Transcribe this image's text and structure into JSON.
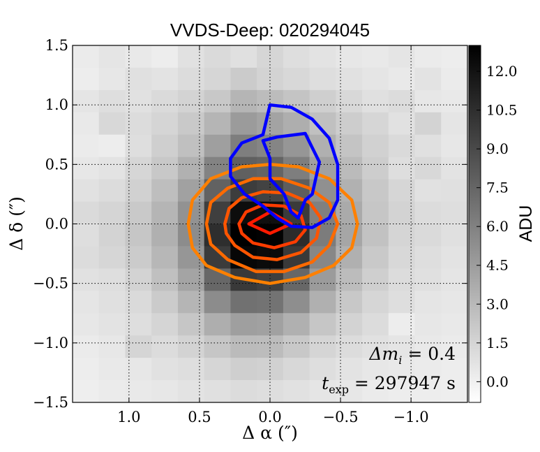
{
  "chart_data": {
    "type": "heatmap",
    "title": "VVDS-Deep: 020294045",
    "xlabel": "Δ α  (″)",
    "ylabel": "Δ δ  (″)",
    "xlim": [
      1.4,
      -1.4
    ],
    "ylim": [
      -1.5,
      1.5
    ],
    "x_ticks": [
      {
        "value": 1.0,
        "label": "1.0"
      },
      {
        "value": 0.5,
        "label": "0.5"
      },
      {
        "value": 0.0,
        "label": "0.0"
      },
      {
        "value": -0.5,
        "label": "−0.5"
      },
      {
        "value": -1.0,
        "label": "−1.0"
      }
    ],
    "y_ticks": [
      {
        "value": -1.5,
        "label": "−1.5"
      },
      {
        "value": -1.0,
        "label": "−1.0"
      },
      {
        "value": -0.5,
        "label": "−0.5"
      },
      {
        "value": 0.0,
        "label": "0.0"
      },
      {
        "value": 0.5,
        "label": "0.5"
      },
      {
        "value": 1.0,
        "label": "1.0"
      },
      {
        "value": 1.5,
        "label": "1.5"
      }
    ],
    "grid": "dotted",
    "colorbar": {
      "label": "ADU",
      "min": -0.8,
      "max": 13.0,
      "ticks": [
        {
          "value": 0.0,
          "label": "0.0"
        },
        {
          "value": 1.5,
          "label": "1.5"
        },
        {
          "value": 3.0,
          "label": "3.0"
        },
        {
          "value": 4.5,
          "label": "4.5"
        },
        {
          "value": 6.0,
          "label": "6.0"
        },
        {
          "value": 7.5,
          "label": "7.5"
        },
        {
          "value": 9.0,
          "label": "9.0"
        },
        {
          "value": 10.5,
          "label": "10.5"
        },
        {
          "value": 12.0,
          "label": "12.0"
        }
      ]
    },
    "pixel_grid": {
      "nx": 15,
      "ny": 16,
      "x_start": 1.4,
      "x_end": -1.4,
      "y_start": 1.5,
      "y_end": -1.5
    },
    "values": [
      [
        0.3,
        0.6,
        0.4,
        0.2,
        0.8,
        1.2,
        0.9,
        1.4,
        1.0,
        0.7,
        0.5,
        0.4,
        0.6,
        0.3,
        0.2
      ],
      [
        0.2,
        0.5,
        0.9,
        0.7,
        1.1,
        1.4,
        2.0,
        1.6,
        1.3,
        1.0,
        0.8,
        0.6,
        0.4,
        0.7,
        0.3
      ],
      [
        0.6,
        1.0,
        0.8,
        1.2,
        1.6,
        2.2,
        3.2,
        2.8,
        2.4,
        1.8,
        1.3,
        0.9,
        1.1,
        0.5,
        0.4
      ],
      [
        0.4,
        1.3,
        1.1,
        1.5,
        2.1,
        3.2,
        4.6,
        4.2,
        3.6,
        2.6,
        1.9,
        1.4,
        0.8,
        1.6,
        0.6
      ],
      [
        0.3,
        0.2,
        1.0,
        1.8,
        2.6,
        4.4,
        6.2,
        5.8,
        4.9,
        3.5,
        2.4,
        1.7,
        1.2,
        0.9,
        0.5
      ],
      [
        0.5,
        0.7,
        1.4,
        2.2,
        3.4,
        5.9,
        7.8,
        7.6,
        6.2,
        4.3,
        2.9,
        1.9,
        1.0,
        1.3,
        0.7
      ],
      [
        0.8,
        1.1,
        1.7,
        2.7,
        4.3,
        7.7,
        9.7,
        9.4,
        7.9,
        5.2,
        3.4,
        2.2,
        1.4,
        0.8,
        0.9
      ],
      [
        1.2,
        1.5,
        2.1,
        3.2,
        5.1,
        9.6,
        12.3,
        12.2,
        9.8,
        6.1,
        3.8,
        2.3,
        1.6,
        1.1,
        1.0
      ],
      [
        1.0,
        1.6,
        2.3,
        3.5,
        5.4,
        10.5,
        13.0,
        12.9,
        10.6,
        6.3,
        4.0,
        2.5,
        1.5,
        1.2,
        0.9
      ],
      [
        1.1,
        1.4,
        2.0,
        3.1,
        4.9,
        9.8,
        12.6,
        12.4,
        9.9,
        5.7,
        3.5,
        2.1,
        1.3,
        1.0,
        0.7
      ],
      [
        0.8,
        1.0,
        1.6,
        2.6,
        4.1,
        7.4,
        9.9,
        9.6,
        7.4,
        4.6,
        2.8,
        1.8,
        1.1,
        0.9,
        0.6
      ],
      [
        0.6,
        0.9,
        1.2,
        2.0,
        3.2,
        5.4,
        6.9,
        6.8,
        5.3,
        3.5,
        2.2,
        1.4,
        1.0,
        0.6,
        0.5
      ],
      [
        0.5,
        0.7,
        1.0,
        1.5,
        2.3,
        3.6,
        4.4,
        4.3,
        3.5,
        2.3,
        1.6,
        1.1,
        0.2,
        0.5,
        0.4
      ],
      [
        0.3,
        0.5,
        1.5,
        1.1,
        1.6,
        2.3,
        2.9,
        2.8,
        2.2,
        1.5,
        1.1,
        0.8,
        0.6,
        0.4,
        0.3
      ],
      [
        0.2,
        0.4,
        0.5,
        0.8,
        1.0,
        1.4,
        1.8,
        1.7,
        1.3,
        1.0,
        0.7,
        0.5,
        0.4,
        0.3,
        0.2
      ],
      [
        0.1,
        0.3,
        0.4,
        0.5,
        0.7,
        0.9,
        1.1,
        1.0,
        0.8,
        0.6,
        0.5,
        0.3,
        0.2,
        0.2,
        0.1
      ]
    ],
    "contours": [
      {
        "name": "orange-outer",
        "color": "#ff8000",
        "points": [
          [
            0.58,
            0.0
          ],
          [
            0.55,
            0.2
          ],
          [
            0.42,
            0.38
          ],
          [
            0.2,
            0.48
          ],
          [
            0.0,
            0.5
          ],
          [
            -0.2,
            0.48
          ],
          [
            -0.42,
            0.38
          ],
          [
            -0.58,
            0.2
          ],
          [
            -0.62,
            0.0
          ],
          [
            -0.58,
            -0.2
          ],
          [
            -0.45,
            -0.35
          ],
          [
            -0.25,
            -0.45
          ],
          [
            0.0,
            -0.5
          ],
          [
            0.25,
            -0.45
          ],
          [
            0.45,
            -0.35
          ],
          [
            0.55,
            -0.2
          ]
        ]
      },
      {
        "name": "orange-2",
        "color": "#ff6a00",
        "points": [
          [
            0.45,
            0.0
          ],
          [
            0.42,
            0.18
          ],
          [
            0.3,
            0.3
          ],
          [
            0.12,
            0.38
          ],
          [
            -0.08,
            0.38
          ],
          [
            -0.28,
            0.3
          ],
          [
            -0.42,
            0.18
          ],
          [
            -0.48,
            0.0
          ],
          [
            -0.42,
            -0.18
          ],
          [
            -0.3,
            -0.32
          ],
          [
            -0.1,
            -0.4
          ],
          [
            0.1,
            -0.4
          ],
          [
            0.3,
            -0.3
          ],
          [
            0.42,
            -0.17
          ]
        ]
      },
      {
        "name": "orange-3",
        "color": "#ff5500",
        "points": [
          [
            0.32,
            0.0
          ],
          [
            0.29,
            0.13
          ],
          [
            0.2,
            0.22
          ],
          [
            0.05,
            0.27
          ],
          [
            -0.12,
            0.26
          ],
          [
            -0.28,
            0.18
          ],
          [
            -0.36,
            0.05
          ],
          [
            -0.33,
            -0.12
          ],
          [
            -0.22,
            -0.24
          ],
          [
            -0.05,
            -0.3
          ],
          [
            0.12,
            -0.28
          ],
          [
            0.25,
            -0.18
          ],
          [
            0.31,
            -0.08
          ]
        ]
      },
      {
        "name": "orange-4",
        "color": "#ff3c00",
        "points": [
          [
            0.22,
            0.0
          ],
          [
            0.17,
            0.1
          ],
          [
            0.05,
            0.16
          ],
          [
            -0.1,
            0.15
          ],
          [
            -0.22,
            0.07
          ],
          [
            -0.25,
            -0.05
          ],
          [
            -0.18,
            -0.15
          ],
          [
            -0.03,
            -0.2
          ],
          [
            0.12,
            -0.16
          ],
          [
            0.2,
            -0.08
          ]
        ]
      },
      {
        "name": "red-core",
        "color": "#ff1a00",
        "points": [
          [
            0.15,
            0.0
          ],
          [
            0.0,
            0.1
          ],
          [
            -0.15,
            0.0
          ],
          [
            0.0,
            -0.08
          ]
        ]
      },
      {
        "name": "blue-outer",
        "color": "#0000ff",
        "points": [
          [
            0.05,
            0.75
          ],
          [
            0.0,
            1.0
          ],
          [
            -0.15,
            0.98
          ],
          [
            -0.3,
            0.88
          ],
          [
            -0.42,
            0.72
          ],
          [
            -0.48,
            0.5
          ],
          [
            -0.48,
            0.2
          ],
          [
            -0.42,
            0.05
          ],
          [
            -0.3,
            -0.03
          ],
          [
            -0.15,
            -0.02
          ],
          [
            -0.05,
            0.05
          ],
          [
            0.05,
            0.15
          ],
          [
            0.18,
            0.25
          ],
          [
            0.28,
            0.4
          ],
          [
            0.28,
            0.55
          ],
          [
            0.2,
            0.68
          ]
        ]
      },
      {
        "name": "blue-inner",
        "color": "#0000ff",
        "points": [
          [
            0.0,
            0.55
          ],
          [
            0.05,
            0.7
          ],
          [
            -0.05,
            0.73
          ],
          [
            -0.25,
            0.76
          ],
          [
            -0.3,
            0.64
          ],
          [
            -0.35,
            0.52
          ],
          [
            -0.3,
            0.25
          ],
          [
            -0.25,
            0.2
          ],
          [
            -0.2,
            0.05
          ],
          [
            -0.15,
            0.1
          ],
          [
            -0.1,
            0.25
          ],
          [
            0.0,
            0.38
          ]
        ]
      }
    ],
    "annotations": [
      "Δm_i = 0.4",
      "t_exp = 297947 s"
    ]
  },
  "annotations_display": {
    "delta_m": {
      "main": "Δm",
      "sub": "i",
      "rest": " = 0.4"
    },
    "t_exp": {
      "main": "t",
      "sub": "exp",
      "rest": " = 297947 s"
    }
  }
}
